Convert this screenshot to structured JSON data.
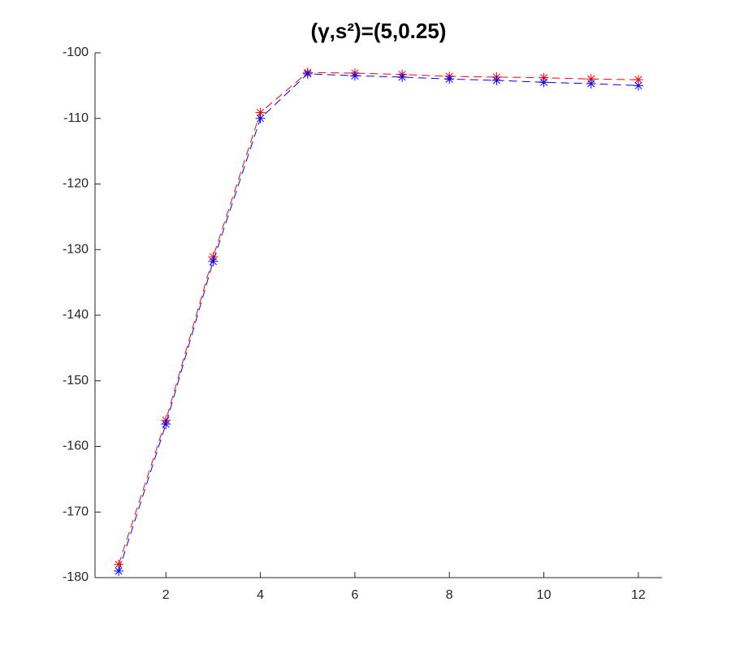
{
  "chart_data": {
    "type": "line",
    "title": "(γ,s²)=(5,0.25)",
    "x": [
      1,
      2,
      3,
      4,
      5,
      6,
      7,
      8,
      9,
      10,
      11,
      12
    ],
    "series": [
      {
        "color": "#ff0000",
        "values": [
          -178,
          -156,
          -131.1,
          -109.1,
          -103,
          -103.1,
          -103.3,
          -103.6,
          -103.7,
          -103.8,
          -104,
          -104.1
        ]
      },
      {
        "color": "#0000ff",
        "values": [
          -179,
          -156.6,
          -131.8,
          -110,
          -103.2,
          -103.5,
          -103.7,
          -104,
          -104.2,
          -104.5,
          -104.7,
          -105
        ]
      }
    ],
    "xlim": [
      0.5,
      12.5
    ],
    "xticks": [
      2,
      4,
      6,
      8,
      10,
      12
    ],
    "ylim": [
      -180,
      -100
    ],
    "yticks": [
      -180,
      -170,
      -160,
      -150,
      -140,
      -130,
      -120,
      -110,
      -100
    ],
    "line_style": "dashed",
    "marker": "asterisk"
  }
}
